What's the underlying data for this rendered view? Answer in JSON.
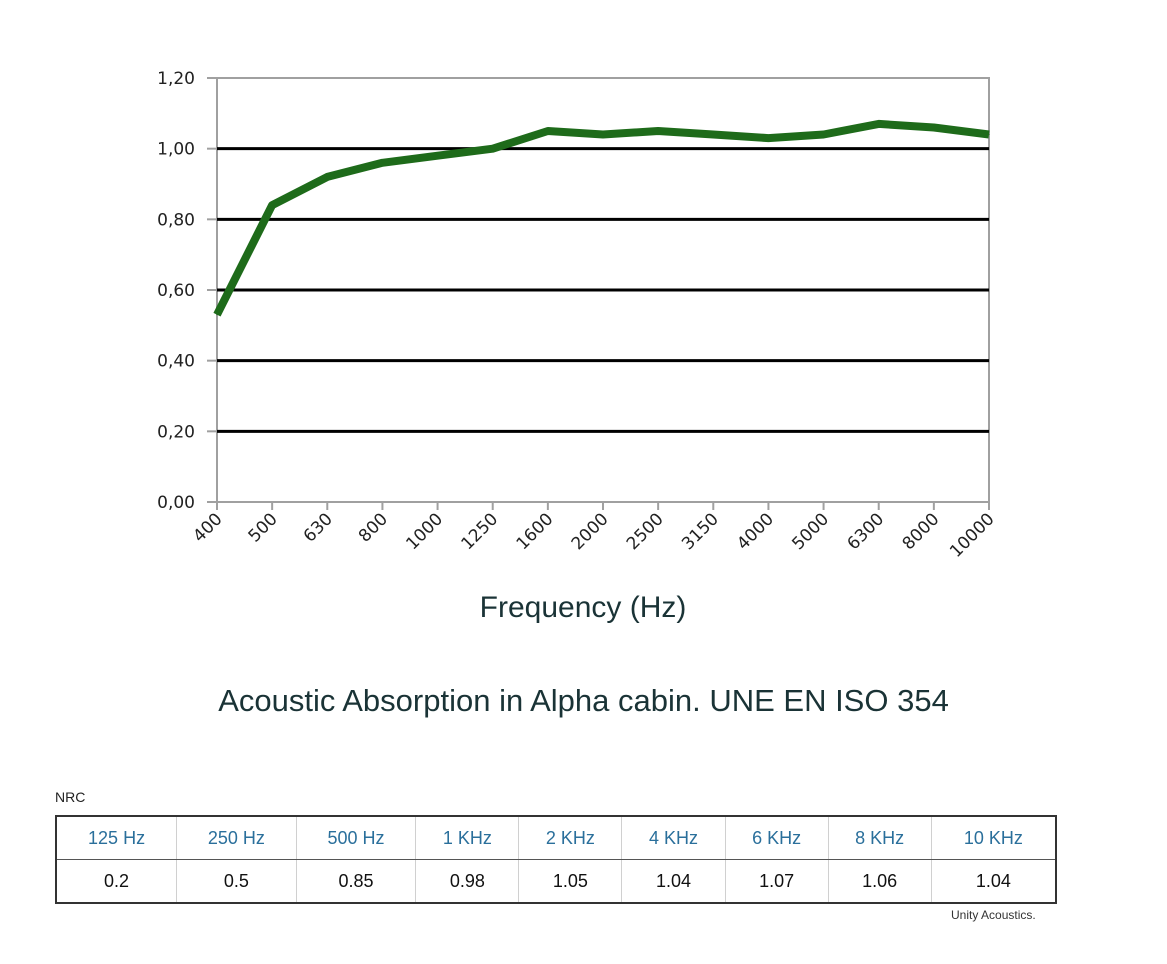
{
  "chart_data": {
    "type": "line",
    "title": "",
    "xlabel": "Frequency (Hz)",
    "ylabel": "",
    "ylim": [
      0,
      1.2
    ],
    "grid": true,
    "categories": [
      "400",
      "500",
      "630",
      "800",
      "1000",
      "1250",
      "1600",
      "2000",
      "2500",
      "3150",
      "4000",
      "5000",
      "6300",
      "8000",
      "10000"
    ],
    "yticks": [
      "0,00",
      "0,20",
      "0,40",
      "0,60",
      "0,80",
      "1,00",
      "1,20"
    ],
    "series": [
      {
        "values": [
          0.53,
          0.84,
          0.92,
          0.96,
          0.98,
          1.0,
          1.05,
          1.04,
          1.05,
          1.04,
          1.03,
          1.04,
          1.07,
          1.06,
          1.04
        ],
        "color": "#1e6b1a"
      }
    ]
  },
  "caption": "Acoustic Absorption in Alpha cabin. UNE EN ISO 354",
  "nrc": {
    "title": "NRC",
    "headers": [
      "125 Hz",
      "250 Hz",
      "500 Hz",
      "1 KHz",
      "2 KHz",
      "4 KHz",
      "6 KHz",
      "8 KHz",
      "10 KHz"
    ],
    "values": [
      "0.2",
      "0.5",
      "0.85",
      "0.98",
      "1.05",
      "1.04",
      "1.07",
      "1.06",
      "1.04"
    ]
  },
  "credit": "Unity Acoustics."
}
